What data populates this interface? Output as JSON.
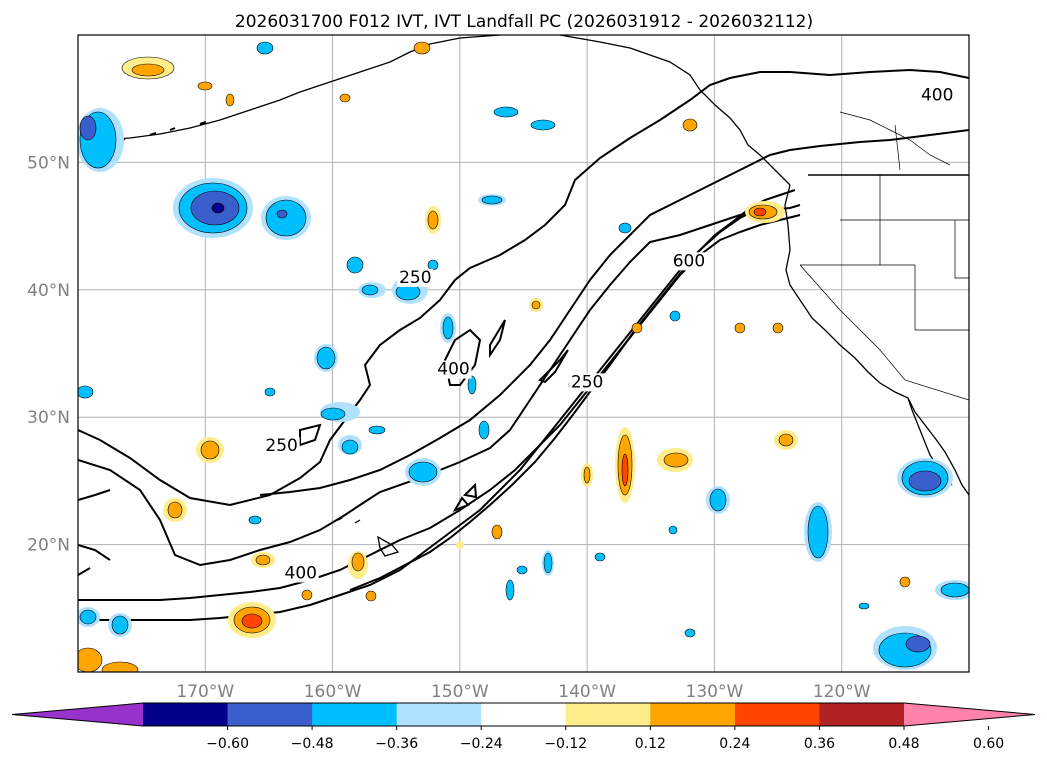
{
  "title": "2026031700 F012 IVT, IVT Landfall PC (2026031912 - 2026032112)",
  "map": {
    "lat_range": [
      10,
      60
    ],
    "lon_range": [
      -180,
      -110
    ],
    "lat_ticks": [
      {
        "value": 20,
        "label": "20°N"
      },
      {
        "value": 30,
        "label": "30°N"
      },
      {
        "value": 40,
        "label": "40°N"
      },
      {
        "value": 50,
        "label": "50°N"
      }
    ],
    "lon_ticks": [
      {
        "value": -170,
        "label": "170°W"
      },
      {
        "value": -160,
        "label": "160°W"
      },
      {
        "value": -150,
        "label": "150°W"
      },
      {
        "value": -140,
        "label": "140°W"
      },
      {
        "value": -130,
        "label": "130°W"
      },
      {
        "value": -120,
        "label": "120°W"
      }
    ],
    "contour_labels": [
      {
        "text": "250",
        "lon": -153.5,
        "lat": 40.7
      },
      {
        "text": "400",
        "lon": -150.5,
        "lat": 33.5
      },
      {
        "text": "250",
        "lon": -140,
        "lat": 32.5
      },
      {
        "text": "600",
        "lon": -132,
        "lat": 42
      },
      {
        "text": "250",
        "lon": -164,
        "lat": 27.5
      },
      {
        "text": "400",
        "lon": -162.5,
        "lat": 17.5
      },
      {
        "text": "400",
        "lon": -112.5,
        "lat": 55
      }
    ]
  },
  "colorbar": {
    "colors": [
      "#9932cc",
      "#00008b",
      "#3a5fcd",
      "#00bfff",
      "#b0e2ff",
      "#ffffff",
      "#ffec8b",
      "#ffa500",
      "#ff4500",
      "#b22222",
      "#ff82ab"
    ],
    "labels": [
      "−0.60",
      "−0.48",
      "−0.36",
      "−0.24",
      "−0.12",
      "0.12",
      "0.24",
      "0.36",
      "0.48",
      "0.60"
    ]
  }
}
